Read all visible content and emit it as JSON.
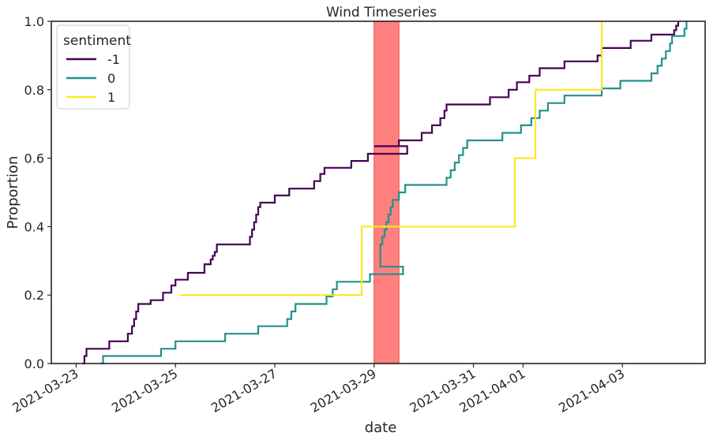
{
  "chart_data": {
    "type": "line",
    "subtype": "step",
    "title": "Wind Timeseries",
    "xlabel": "date",
    "ylabel": "Proportion",
    "xlim": [
      "2021-03-22T12:00",
      "2021-04-04T16:00"
    ],
    "ylim": [
      0,
      1
    ],
    "x_ticks": [
      "2021-03-23",
      "2021-03-25",
      "2021-03-27",
      "2021-03-29",
      "2021-03-31",
      "2021-04-01",
      "2021-04-03"
    ],
    "y_ticks": [
      "0.0",
      "0.2",
      "0.4",
      "0.6",
      "0.8",
      "1.0"
    ],
    "grid": false,
    "legend": {
      "title": "sentiment",
      "position": "top-left"
    },
    "highlight": {
      "x_start": "2021-03-29T00:00",
      "x_end": "2021-03-29T12:00",
      "color": "#ff7f7f"
    },
    "series": [
      {
        "name": "-1",
        "color": "#440154",
        "points": [
          [
            "2021-03-23T03:00",
            0.0
          ],
          [
            "2021-03-23T04:00",
            0.022
          ],
          [
            "2021-03-23T05:00",
            0.043
          ],
          [
            "2021-03-23T16:00",
            0.065
          ],
          [
            "2021-03-24T01:00",
            0.087
          ],
          [
            "2021-03-24T03:00",
            0.109
          ],
          [
            "2021-03-24T04:00",
            0.13
          ],
          [
            "2021-03-24T05:00",
            0.152
          ],
          [
            "2021-03-24T06:00",
            0.174
          ],
          [
            "2021-03-24T12:00",
            0.185
          ],
          [
            "2021-03-24T18:00",
            0.207
          ],
          [
            "2021-03-24T22:00",
            0.228
          ],
          [
            "2021-03-25T00:00",
            0.245
          ],
          [
            "2021-03-25T06:00",
            0.265
          ],
          [
            "2021-03-25T14:00",
            0.29
          ],
          [
            "2021-03-25T17:00",
            0.304
          ],
          [
            "2021-03-25T18:00",
            0.315
          ],
          [
            "2021-03-25T19:00",
            0.326
          ],
          [
            "2021-03-25T20:00",
            0.348
          ],
          [
            "2021-03-26T12:00",
            0.37
          ],
          [
            "2021-03-26T13:00",
            0.391
          ],
          [
            "2021-03-26T14:00",
            0.413
          ],
          [
            "2021-03-26T15:00",
            0.435
          ],
          [
            "2021-03-26T16:00",
            0.457
          ],
          [
            "2021-03-26T17:00",
            0.47
          ],
          [
            "2021-03-27T00:00",
            0.491
          ],
          [
            "2021-03-27T07:00",
            0.511
          ],
          [
            "2021-03-27T19:00",
            0.533
          ],
          [
            "2021-03-27T22:00",
            0.554
          ],
          [
            "2021-03-28T00:00",
            0.572
          ],
          [
            "2021-03-28T13:00",
            0.592
          ],
          [
            "2021-03-28T21:00",
            0.613
          ],
          [
            "2021-03-29T16:00",
            0.635
          ],
          [
            "2021-03-29T00:00",
            0.635
          ],
          [
            "2021-03-29T12:00",
            0.652
          ],
          [
            "2021-03-29T23:00",
            0.674
          ],
          [
            "2021-03-30T04:00",
            0.696
          ],
          [
            "2021-03-30T08:00",
            0.717
          ],
          [
            "2021-03-30T10:00",
            0.739
          ],
          [
            "2021-03-30T11:00",
            0.757
          ],
          [
            "2021-03-31T08:00",
            0.778
          ],
          [
            "2021-03-31T17:00",
            0.8
          ],
          [
            "2021-03-31T21:00",
            0.822
          ],
          [
            "2021-04-01T03:00",
            0.841
          ],
          [
            "2021-04-01T08:00",
            0.863
          ],
          [
            "2021-04-01T20:00",
            0.883
          ],
          [
            "2021-04-02T12:00",
            0.9
          ],
          [
            "2021-04-02T14:00",
            0.922
          ],
          [
            "2021-04-03T04:00",
            0.943
          ],
          [
            "2021-04-03T14:00",
            0.961
          ],
          [
            "2021-04-04T01:00",
            0.974
          ],
          [
            "2021-04-04T02:00",
            0.987
          ],
          [
            "2021-04-04T03:00",
            1.0
          ]
        ]
      },
      {
        "name": "0",
        "color": "#21918c",
        "points": [
          [
            "2021-03-23T12:00",
            0.0
          ],
          [
            "2021-03-23T13:00",
            0.022
          ],
          [
            "2021-03-24T17:00",
            0.043
          ],
          [
            "2021-03-25T00:00",
            0.065
          ],
          [
            "2021-03-26T00:00",
            0.087
          ],
          [
            "2021-03-26T16:00",
            0.109
          ],
          [
            "2021-03-27T06:00",
            0.13
          ],
          [
            "2021-03-27T08:00",
            0.152
          ],
          [
            "2021-03-27T10:00",
            0.174
          ],
          [
            "2021-03-28T01:00",
            0.196
          ],
          [
            "2021-03-28T04:00",
            0.217
          ],
          [
            "2021-03-28T06:00",
            0.239
          ],
          [
            "2021-03-28T22:00",
            0.261
          ],
          [
            "2021-03-29T14:00",
            0.283
          ],
          [
            "2021-03-29T03:00",
            0.348
          ],
          [
            "2021-03-29T04:00",
            0.37
          ],
          [
            "2021-03-29T05:00",
            0.391
          ],
          [
            "2021-03-29T06:00",
            0.413
          ],
          [
            "2021-03-29T07:00",
            0.435
          ],
          [
            "2021-03-29T08:00",
            0.457
          ],
          [
            "2021-03-29T09:00",
            0.478
          ],
          [
            "2021-03-29T12:00",
            0.5
          ],
          [
            "2021-03-29T15:00",
            0.522
          ],
          [
            "2021-03-30T11:00",
            0.543
          ],
          [
            "2021-03-30T13:00",
            0.565
          ],
          [
            "2021-03-30T15:00",
            0.587
          ],
          [
            "2021-03-30T17:00",
            0.609
          ],
          [
            "2021-03-30T19:00",
            0.63
          ],
          [
            "2021-03-30T21:00",
            0.652
          ],
          [
            "2021-03-31T14:00",
            0.674
          ],
          [
            "2021-03-31T23:00",
            0.696
          ],
          [
            "2021-04-01T04:00",
            0.717
          ],
          [
            "2021-04-01T08:00",
            0.739
          ],
          [
            "2021-04-01T12:00",
            0.761
          ],
          [
            "2021-04-01T20:00",
            0.783
          ],
          [
            "2021-04-02T14:00",
            0.804
          ],
          [
            "2021-04-02T23:00",
            0.826
          ],
          [
            "2021-04-03T14:00",
            0.848
          ],
          [
            "2021-04-03T17:00",
            0.87
          ],
          [
            "2021-04-03T19:00",
            0.891
          ],
          [
            "2021-04-03T21:00",
            0.913
          ],
          [
            "2021-04-03T23:00",
            0.935
          ],
          [
            "2021-04-04T00:00",
            0.957
          ],
          [
            "2021-04-04T06:00",
            0.978
          ],
          [
            "2021-04-04T07:00",
            1.0
          ]
        ]
      },
      {
        "name": "1",
        "color": "#fde725",
        "points": [
          [
            "2021-03-25T02:00",
            0.2
          ],
          [
            "2021-03-28T18:00",
            0.4
          ],
          [
            "2021-03-31T20:00",
            0.6
          ],
          [
            "2021-04-01T06:00",
            0.8
          ],
          [
            "2021-04-02T14:00",
            1.0
          ]
        ]
      }
    ]
  }
}
